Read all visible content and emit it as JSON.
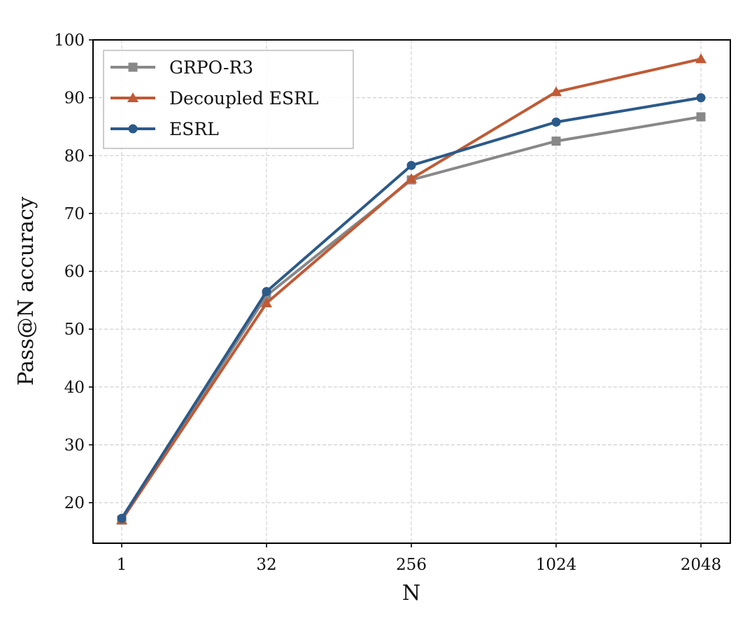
{
  "chart_data": {
    "type": "line",
    "x_categories": [
      "1",
      "32",
      "256",
      "1024",
      "2048"
    ],
    "xlabel": "N",
    "ylabel": "Pass@N accuracy",
    "ylim": [
      13,
      100
    ],
    "yticks": [
      20,
      30,
      40,
      50,
      60,
      70,
      80,
      90,
      100
    ],
    "grid": true,
    "legend_position": "top-left",
    "series": [
      {
        "name": "GRPO-R3",
        "color": "#888888",
        "marker": "square",
        "values": [
          17.0,
          55.8,
          75.8,
          82.5,
          86.7
        ]
      },
      {
        "name": "Decoupled ESRL",
        "color": "#c05a35",
        "marker": "triangle",
        "values": [
          17.0,
          54.5,
          76.0,
          91.0,
          96.7
        ]
      },
      {
        "name": "ESRL",
        "color": "#2b5a8a",
        "marker": "circle",
        "values": [
          17.3,
          56.5,
          78.3,
          85.8,
          90.0
        ]
      }
    ]
  }
}
